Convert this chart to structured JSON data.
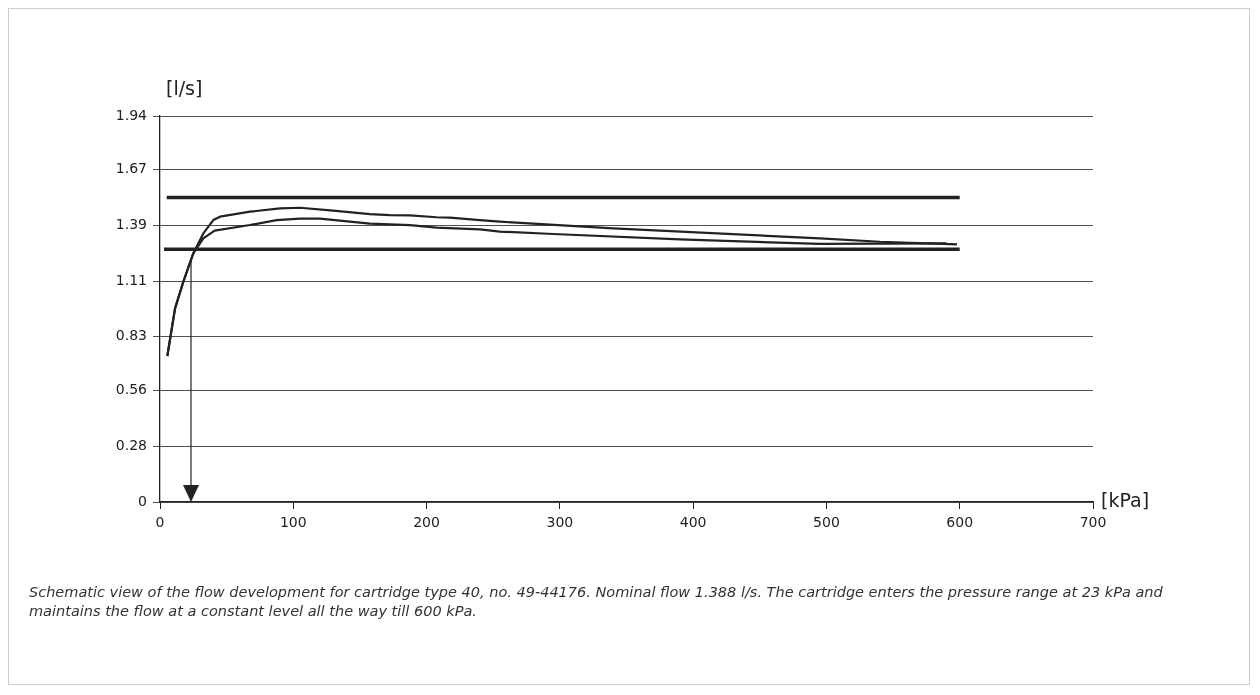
{
  "chart_data": {
    "type": "line",
    "xlabel": "[kPa]",
    "ylabel": "[l/s]",
    "xlim": [
      0,
      700
    ],
    "xticks": [
      0,
      100,
      200,
      300,
      400,
      500,
      600,
      700
    ],
    "ylim": [
      0,
      1.94
    ],
    "yticks": [
      0,
      0.28,
      0.56,
      0.83,
      1.11,
      1.39,
      1.67,
      1.94
    ],
    "grid": "y",
    "legend": false,
    "marker": "none",
    "line_style": "solid",
    "series": [
      {
        "color": "#222222",
        "x": [
          5,
          600
        ],
        "values": [
          1.531,
          1.531
        ]
      },
      {
        "color": "#222222",
        "x": [
          3,
          600
        ],
        "values": [
          1.27,
          1.27
        ]
      },
      {
        "color": "#222222",
        "x": [
          5.5,
          11.3,
          17.5,
          25,
          32.5,
          40,
          45,
          67.5,
          90,
          105,
          130,
          157.5,
          172.5,
          187.5,
          207.5,
          217.5,
          240,
          255,
          340,
          495,
          540,
          598
        ],
        "values": [
          0.734,
          0.973,
          1.107,
          1.25,
          1.35,
          1.417,
          1.434,
          1.459,
          1.476,
          1.479,
          1.464,
          1.447,
          1.442,
          1.441,
          1.431,
          1.429,
          1.417,
          1.409,
          1.375,
          1.325,
          1.308,
          1.295
        ]
      },
      {
        "color": "#222222",
        "x": [
          5.5,
          11.3,
          17.5,
          25,
          32.5,
          41,
          67.5,
          87.5,
          105,
          120,
          142.5,
          157.5,
          187.5,
          207.5,
          240,
          255,
          295,
          390,
          495,
          590
        ],
        "values": [
          0.734,
          0.973,
          1.107,
          1.25,
          1.325,
          1.364,
          1.392,
          1.417,
          1.424,
          1.424,
          1.409,
          1.399,
          1.392,
          1.379,
          1.37,
          1.359,
          1.347,
          1.32,
          1.297,
          1.3
        ]
      }
    ],
    "ref_lines": [
      {
        "axis": "x",
        "value": 23,
        "color": "#222222"
      }
    ],
    "annotations": [
      "Schematic view of the flow development for cartridge type 40, no. 49-44176. Nominal flow 1.388 l/s. The cartridge enters the pressure range at 23 kPa and maintains the flow at a constant level all the way till 600 kPa."
    ]
  }
}
